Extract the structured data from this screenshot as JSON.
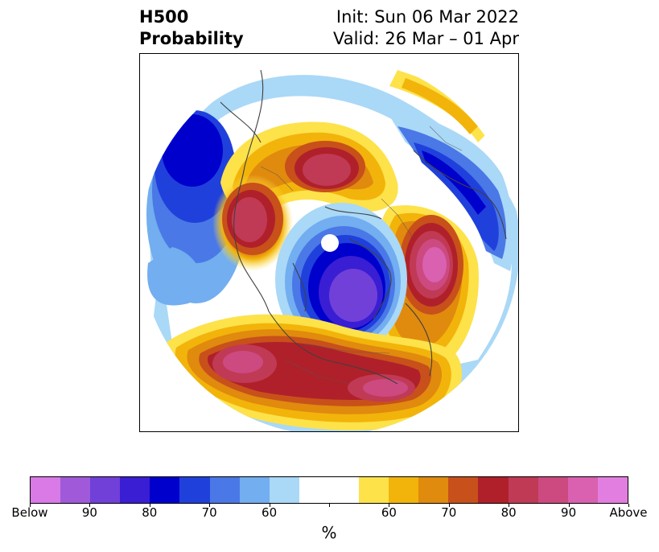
{
  "header": {
    "title_line1": "H500",
    "title_line2": "Probability",
    "init_text": "Init: Sun 06 Mar 2022",
    "valid_text": "Valid: 26 Mar – 01 Apr"
  },
  "colorbar": {
    "colors": [
      "#d97ae6",
      "#a05ad9",
      "#7040d9",
      "#3a1ed3",
      "#0000cd",
      "#2040dc",
      "#4a78e6",
      "#72aef0",
      "#aad8f7",
      "#ffffff",
      "#ffffff",
      "#fde24a",
      "#f2b40a",
      "#e08a0e",
      "#c8501a",
      "#b0202a",
      "#c03a55",
      "#cc4a80",
      "#da60b0",
      "#e27ee0"
    ],
    "tick_labels": [
      "Below",
      "90",
      "80",
      "70",
      "60",
      "",
      "60",
      "70",
      "80",
      "90",
      "Above"
    ],
    "unit_label": "%"
  },
  "map": {
    "projection": "north-polar-stereographic",
    "layers": "probability-shading"
  }
}
